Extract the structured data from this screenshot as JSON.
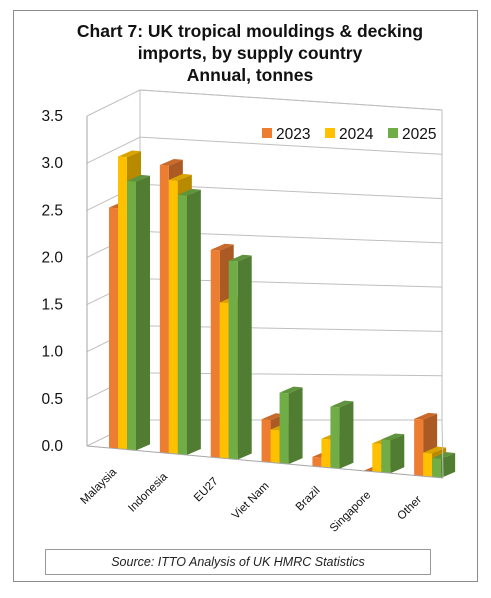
{
  "chart_data": {
    "type": "bar",
    "title_lines": [
      "Chart 7: UK tropical mouldings & decking",
      "imports, by supply country",
      "Annual, tonnes"
    ],
    "categories": [
      "Malaysia",
      "Indonesia",
      "EU27",
      "Viet Nam",
      "Brazil",
      "Singapore",
      "Other"
    ],
    "series": [
      {
        "name": "2023",
        "color": "#ED7D31",
        "values": [
          2.55,
          3.05,
          2.2,
          0.45,
          0.1,
          0.0,
          0.6
        ]
      },
      {
        "name": "2024",
        "color": "#FFC000",
        "values": [
          3.1,
          2.9,
          1.65,
          0.35,
          0.3,
          0.3,
          0.25
        ]
      },
      {
        "name": "2025",
        "color": "#70AD47",
        "values": [
          2.85,
          2.75,
          2.1,
          0.75,
          0.65,
          0.35,
          0.2
        ]
      }
    ],
    "ylim": [
      0,
      3.5
    ],
    "y_ticks": [
      "0.0",
      "0.5",
      "1.0",
      "1.5",
      "2.0",
      "2.5",
      "3.0",
      "3.5"
    ],
    "xlabel": "",
    "ylabel": "",
    "grid": true,
    "legend_position": "top-right",
    "source": "Source: ITTO Analysis of UK HMRC Statistics"
  }
}
